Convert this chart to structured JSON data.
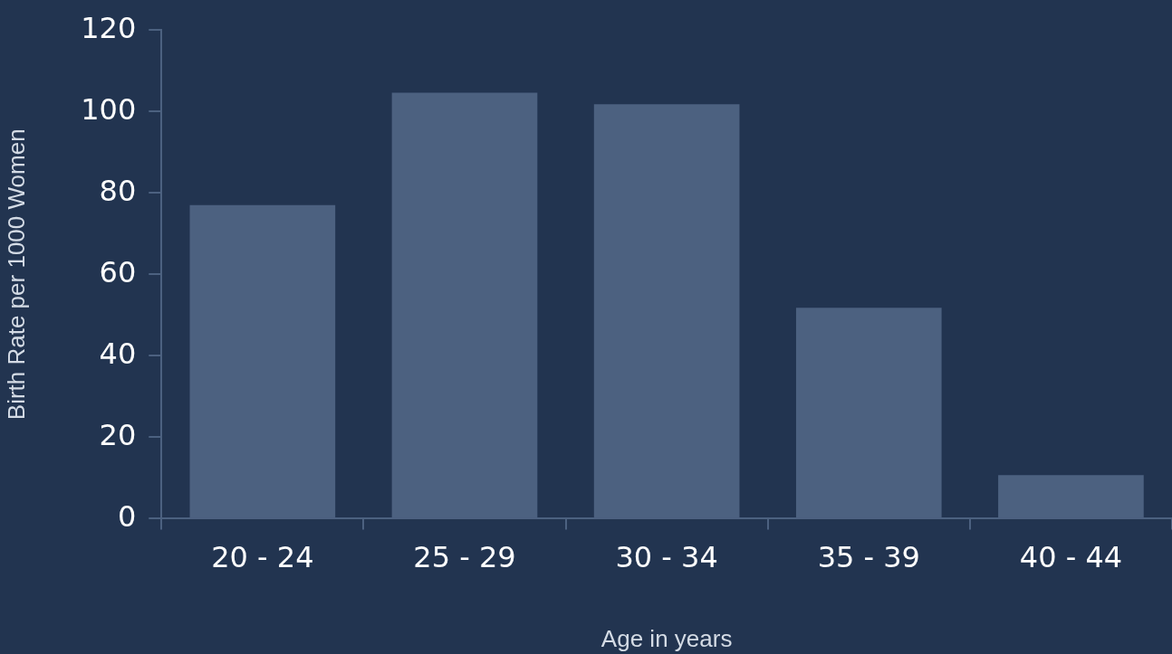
{
  "chart_data": {
    "type": "bar",
    "xlabel": "Age in years",
    "ylabel": "Birth Rate per 1000 Women",
    "categories": [
      "20 - 24",
      "25 - 29",
      "30 - 34",
      "35 - 39",
      "40 - 44"
    ],
    "values": [
      77,
      104.6,
      101.8,
      51.8,
      10.7
    ],
    "color": "#4c6180",
    "ylim": [
      0,
      120
    ],
    "yticks": [
      0,
      20,
      40,
      60,
      80,
      100,
      120
    ],
    "grid": false,
    "legend": false
  }
}
